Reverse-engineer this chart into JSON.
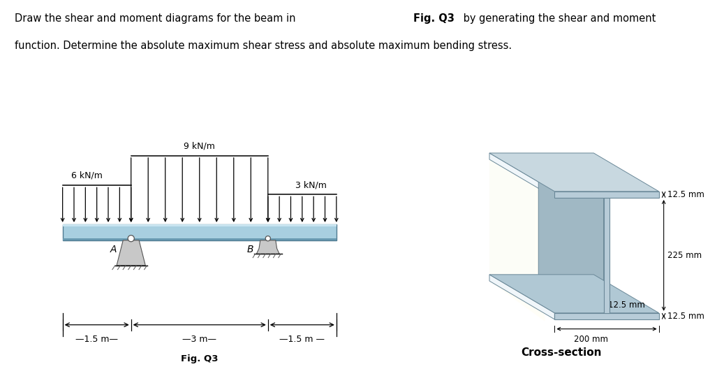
{
  "title_part1": "Draw the shear and moment diagrams for the beam in ",
  "title_bold": "Fig. Q3",
  "title_part2": " by generating the shear and moment",
  "title_line2": "function. Determine the absolute maximum shear stress and absolute maximum bending stress.",
  "load_left": "6 kN/m",
  "load_mid": "9 kN/m",
  "load_right": "3 kN/m",
  "dim_left": "1.5 m",
  "dim_mid": "3 m",
  "dim_right": "1.5 m",
  "support_A": "A",
  "support_B": "B",
  "cs_label": "Cross-section",
  "fig_label": "Fig. Q3",
  "cs_dim_top_flange": "12.5 mm",
  "cs_dim_web_t": "12.5 mm",
  "cs_dim_web_h": "225 mm",
  "cs_dim_bot_flange": "12.5 mm",
  "cs_dim_width": "200 mm",
  "beam_color": "#a8cfe0",
  "beam_highlight": "#c8e4f0",
  "beam_dark": "#6899b0",
  "beam_edge": "#507a90",
  "bg_color": "#ffffff"
}
